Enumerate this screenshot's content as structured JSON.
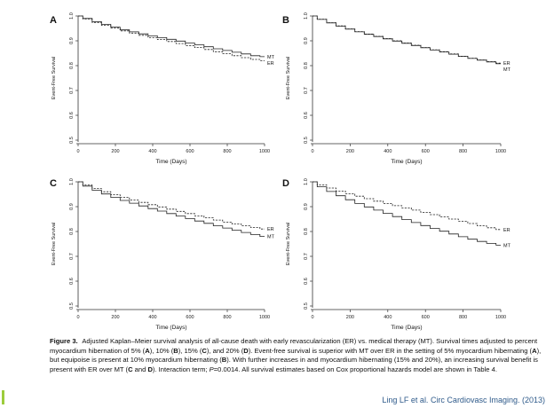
{
  "chart_data": [
    {
      "type": "line",
      "panel_label": "A",
      "xlabel": "Time (Days)",
      "ylabel": "Event-Free Survival",
      "xlim": [
        0,
        1000
      ],
      "ylim": [
        0.5,
        1.0
      ],
      "xticks": [
        "0",
        "200",
        "400",
        "600",
        "800",
        "1000"
      ],
      "yticks": [
        "0.5",
        "0.6",
        "0.7",
        "0.8",
        "0.9",
        "1.0"
      ],
      "series": [
        {
          "name": "MT",
          "dash": false,
          "x": [
            0,
            50,
            100,
            150,
            200,
            250,
            300,
            350,
            400,
            450,
            500,
            550,
            600,
            650,
            700,
            750,
            800,
            850,
            900,
            950,
            1000
          ],
          "values": [
            1.0,
            0.99,
            0.977,
            0.966,
            0.955,
            0.944,
            0.936,
            0.928,
            0.92,
            0.913,
            0.906,
            0.899,
            0.891,
            0.884,
            0.876,
            0.868,
            0.861,
            0.854,
            0.847,
            0.84,
            0.836
          ]
        },
        {
          "name": "ER",
          "dash": true,
          "x": [
            0,
            50,
            100,
            150,
            200,
            250,
            300,
            350,
            400,
            450,
            500,
            550,
            600,
            650,
            700,
            750,
            800,
            850,
            900,
            950,
            1000
          ],
          "values": [
            1.0,
            0.988,
            0.974,
            0.962,
            0.951,
            0.94,
            0.931,
            0.922,
            0.913,
            0.905,
            0.897,
            0.889,
            0.881,
            0.873,
            0.865,
            0.856,
            0.848,
            0.84,
            0.832,
            0.825,
            0.82
          ]
        }
      ]
    },
    {
      "type": "line",
      "panel_label": "B",
      "xlabel": "Time (Days)",
      "ylabel": "Event-Free Survival",
      "xlim": [
        0,
        1000
      ],
      "ylim": [
        0.5,
        1.0
      ],
      "xticks": [
        "0",
        "200",
        "400",
        "600",
        "800",
        "1000"
      ],
      "yticks": [
        "0.5",
        "0.6",
        "0.7",
        "0.8",
        "0.9",
        "1.0"
      ],
      "series": [
        {
          "name": "ER",
          "dash": true,
          "x": [
            0,
            50,
            100,
            150,
            200,
            250,
            300,
            350,
            400,
            450,
            500,
            550,
            600,
            650,
            700,
            750,
            800,
            850,
            900,
            950,
            1000
          ],
          "values": [
            1.0,
            0.987,
            0.973,
            0.96,
            0.948,
            0.937,
            0.927,
            0.918,
            0.909,
            0.9,
            0.891,
            0.882,
            0.873,
            0.864,
            0.856,
            0.847,
            0.838,
            0.83,
            0.823,
            0.816,
            0.81
          ]
        },
        {
          "name": "MT",
          "dash": false,
          "x": [
            0,
            50,
            100,
            150,
            200,
            250,
            300,
            350,
            400,
            450,
            500,
            550,
            600,
            650,
            700,
            750,
            800,
            850,
            900,
            950,
            1000
          ],
          "values": [
            1.0,
            0.986,
            0.972,
            0.959,
            0.947,
            0.936,
            0.926,
            0.917,
            0.908,
            0.899,
            0.89,
            0.881,
            0.872,
            0.863,
            0.855,
            0.846,
            0.837,
            0.829,
            0.822,
            0.815,
            0.808
          ]
        }
      ]
    },
    {
      "type": "line",
      "panel_label": "C",
      "xlabel": "Time (Days)",
      "ylabel": "Event-Free Survival",
      "xlim": [
        0,
        1000
      ],
      "ylim": [
        0.5,
        1.0
      ],
      "xticks": [
        "0",
        "200",
        "400",
        "600",
        "800",
        "1000"
      ],
      "yticks": [
        "0.5",
        "0.6",
        "0.7",
        "0.8",
        "0.9",
        "1.0"
      ],
      "series": [
        {
          "name": "ER",
          "dash": true,
          "x": [
            0,
            50,
            100,
            150,
            200,
            250,
            300,
            350,
            400,
            450,
            500,
            550,
            600,
            650,
            700,
            750,
            800,
            850,
            900,
            950,
            1000
          ],
          "values": [
            1.0,
            0.987,
            0.973,
            0.96,
            0.948,
            0.937,
            0.927,
            0.917,
            0.908,
            0.899,
            0.89,
            0.881,
            0.872,
            0.863,
            0.855,
            0.846,
            0.838,
            0.83,
            0.823,
            0.816,
            0.81
          ]
        },
        {
          "name": "MT",
          "dash": false,
          "x": [
            0,
            50,
            100,
            150,
            200,
            250,
            300,
            350,
            400,
            450,
            500,
            550,
            600,
            650,
            700,
            750,
            800,
            850,
            900,
            950,
            1000
          ],
          "values": [
            1.0,
            0.983,
            0.966,
            0.951,
            0.937,
            0.925,
            0.914,
            0.903,
            0.892,
            0.882,
            0.872,
            0.862,
            0.852,
            0.842,
            0.833,
            0.823,
            0.814,
            0.805,
            0.796,
            0.788,
            0.78
          ]
        }
      ]
    },
    {
      "type": "line",
      "panel_label": "D",
      "xlabel": "Time (Days)",
      "ylabel": "Event-Free Survival",
      "xlim": [
        0,
        1000
      ],
      "ylim": [
        0.5,
        1.0
      ],
      "xticks": [
        "0",
        "200",
        "400",
        "600",
        "800",
        "1000"
      ],
      "yticks": [
        "0.5",
        "0.6",
        "0.7",
        "0.8",
        "0.9",
        "1.0"
      ],
      "series": [
        {
          "name": "ER",
          "dash": true,
          "x": [
            0,
            50,
            100,
            150,
            200,
            250,
            300,
            350,
            400,
            450,
            500,
            550,
            600,
            650,
            700,
            750,
            800,
            850,
            900,
            950,
            1000
          ],
          "values": [
            1.0,
            0.988,
            0.975,
            0.963,
            0.952,
            0.942,
            0.932,
            0.922,
            0.913,
            0.904,
            0.895,
            0.886,
            0.877,
            0.868,
            0.859,
            0.85,
            0.841,
            0.832,
            0.823,
            0.815,
            0.808
          ]
        },
        {
          "name": "MT",
          "dash": false,
          "x": [
            0,
            50,
            100,
            150,
            200,
            250,
            300,
            350,
            400,
            450,
            500,
            550,
            600,
            650,
            700,
            750,
            800,
            850,
            900,
            950,
            1000
          ],
          "values": [
            1.0,
            0.98,
            0.961,
            0.944,
            0.928,
            0.913,
            0.899,
            0.886,
            0.873,
            0.86,
            0.848,
            0.836,
            0.824,
            0.812,
            0.801,
            0.79,
            0.779,
            0.769,
            0.76,
            0.752,
            0.745
          ]
        }
      ]
    }
  ],
  "caption": {
    "title": "Figure 3.",
    "segments": [
      " Adjusted Kaplan–Meier survival analysis of all-cause death with early revascularization (ER) vs. medical therapy (MT). Survival times adjusted to percent myocardium hibernation of 5% (",
      {
        "b": "A"
      },
      "), 10% (",
      {
        "b": "B"
      },
      "), 15% (",
      {
        "b": "C"
      },
      "), and 20% (",
      {
        "b": "D"
      },
      "). Event-free survival is superior with MT over ER in the setting of 5% myocardium hibernating (",
      {
        "b": "A"
      },
      "), but equipoise is present at 10% myocardium hibernating (",
      {
        "b": "B"
      },
      "). With further increases in and myocardium hibernating (15% and 20%), an increasing survival benefit is present with ER over MT (",
      {
        "b": "C"
      },
      " and ",
      {
        "b": "D"
      },
      "). Interaction term; ",
      {
        "i": "P"
      },
      "=0.0014. All survival estimates based on Cox proportional hazards model are shown in Table 4."
    ]
  },
  "citation": "Ling LF et al. Circ Cardiovasc Imaging. (2013)",
  "colors": {
    "line": "#222222",
    "axis": "#333333",
    "citation": "#2e5a8a",
    "accent_bar": "#9ccc3c"
  }
}
